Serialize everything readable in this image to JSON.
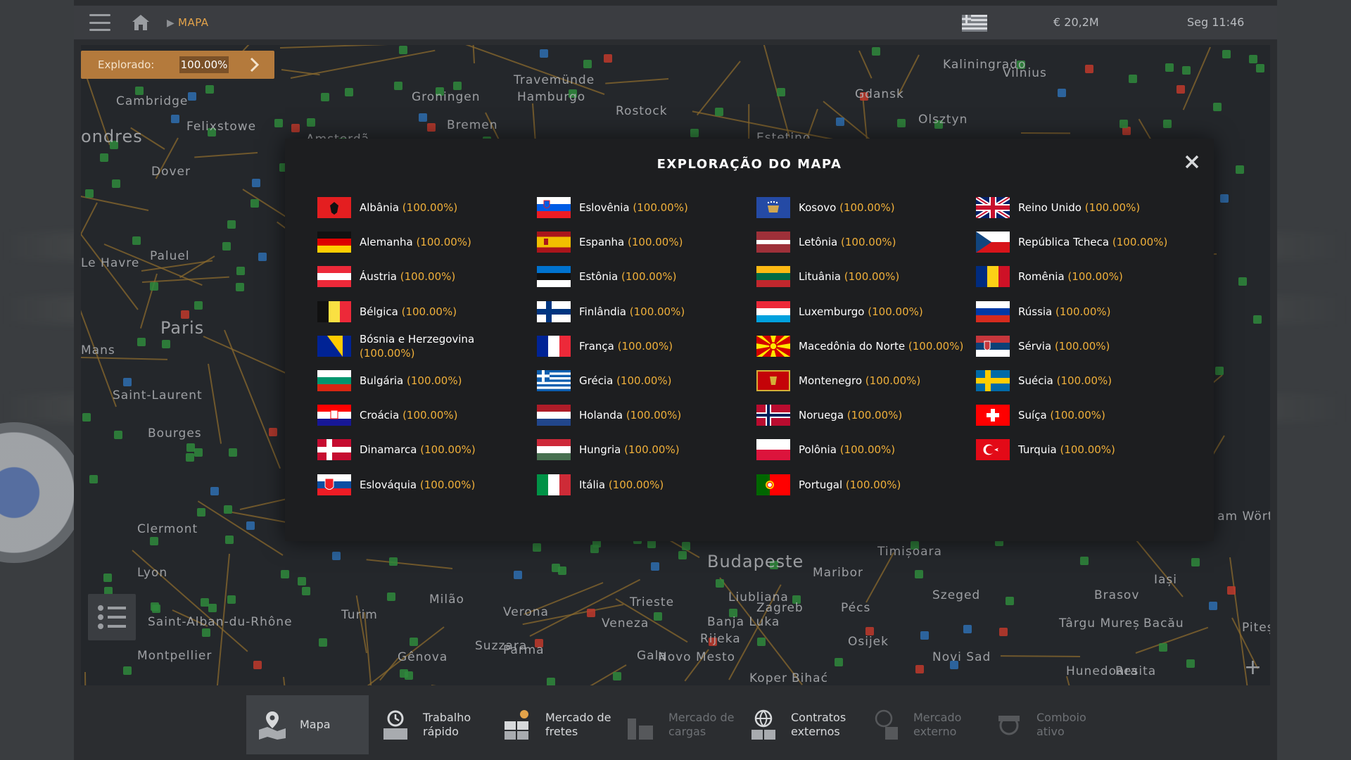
{
  "topbar": {
    "breadcrumb": "MAPA",
    "money": "€ 20,2M",
    "clock": "Seg 11:46",
    "icons": [
      "menu-icon",
      "home-icon",
      "language-flag-icon"
    ]
  },
  "map": {
    "explored_label": "Explorado:",
    "explored_value": "100.00%",
    "cities": [
      "Cambridge",
      "Felixstowe",
      "ondres",
      "Dover",
      "Groningen",
      "Amsterdã",
      "Bremen",
      "Hamburgo",
      "Travemünde",
      "Rostock",
      "Gdansk",
      "Kaliningrado",
      "Vilnius",
      "Olsztyn",
      "Estetino",
      "Le Havre",
      "Paluel",
      "Paris",
      "Mans",
      "Saint-Laurent",
      "Bourges",
      "Clermont",
      "Lyon",
      "Saint-Alban-du-Rhône",
      "Montpellier",
      "Turim",
      "Milão",
      "Gênova",
      "Verona",
      "Veneza",
      "Parma",
      "Trieste",
      "Liubliana",
      "Rijeka",
      "Zagreb",
      "Maribor",
      "Pécs",
      "Osijek",
      "Szeged",
      "Novi Sad",
      "Timișoara",
      "Budapeste",
      "Klagenfurt am Wörthersee",
      "Iași",
      "Bacău",
      "Brasov",
      "Târgu Mureș",
      "Hunedoara",
      "Resita",
      "Pitești",
      "Gala",
      "Koper",
      "Bihać",
      "Banja Luka",
      "Novo Mesto",
      "Suzzara"
    ]
  },
  "modal": {
    "title": "EXPLORAÇÃO DO MAPA",
    "columns": [
      [
        {
          "name": "Albânia",
          "pct": "(100.00%)",
          "flag": "albania"
        },
        {
          "name": "Alemanha",
          "pct": "(100.00%)",
          "flag": "germany"
        },
        {
          "name": "Áustria",
          "pct": "(100.00%)",
          "flag": "austria"
        },
        {
          "name": "Bélgica",
          "pct": "(100.00%)",
          "flag": "belgium"
        },
        {
          "name": "Bósnia e Herzegovina",
          "pct": "(100.00%)",
          "flag": "bosnia"
        },
        {
          "name": "Bulgária",
          "pct": "(100.00%)",
          "flag": "bulgaria"
        },
        {
          "name": "Croácia",
          "pct": "(100.00%)",
          "flag": "croatia"
        },
        {
          "name": "Dinamarca",
          "pct": "(100.00%)",
          "flag": "denmark"
        },
        {
          "name": "Eslováquia",
          "pct": "(100.00%)",
          "flag": "slovakia"
        }
      ],
      [
        {
          "name": "Eslovênia",
          "pct": "(100.00%)",
          "flag": "slovenia"
        },
        {
          "name": "Espanha",
          "pct": "(100.00%)",
          "flag": "spain"
        },
        {
          "name": "Estônia",
          "pct": "(100.00%)",
          "flag": "estonia"
        },
        {
          "name": "Finlândia",
          "pct": "(100.00%)",
          "flag": "finland"
        },
        {
          "name": "França",
          "pct": "(100.00%)",
          "flag": "france"
        },
        {
          "name": "Grécia",
          "pct": "(100.00%)",
          "flag": "greece"
        },
        {
          "name": "Holanda",
          "pct": "(100.00%)",
          "flag": "netherlands"
        },
        {
          "name": "Hungria",
          "pct": "(100.00%)",
          "flag": "hungary"
        },
        {
          "name": "Itália",
          "pct": "(100.00%)",
          "flag": "italy"
        }
      ],
      [
        {
          "name": "Kosovo",
          "pct": "(100.00%)",
          "flag": "kosovo"
        },
        {
          "name": "Letônia",
          "pct": "(100.00%)",
          "flag": "latvia"
        },
        {
          "name": "Lituânia",
          "pct": "(100.00%)",
          "flag": "lithuania"
        },
        {
          "name": "Luxemburgo",
          "pct": "(100.00%)",
          "flag": "luxembourg"
        },
        {
          "name": "Macedônia do Norte",
          "pct": "(100.00%)",
          "flag": "north-macedonia"
        },
        {
          "name": "Montenegro",
          "pct": "(100.00%)",
          "flag": "montenegro"
        },
        {
          "name": "Noruega",
          "pct": "(100.00%)",
          "flag": "norway"
        },
        {
          "name": "Polônia",
          "pct": "(100.00%)",
          "flag": "poland"
        },
        {
          "name": "Portugal",
          "pct": "(100.00%)",
          "flag": "portugal"
        }
      ],
      [
        {
          "name": "Reino Unido",
          "pct": "(100.00%)",
          "flag": "united-kingdom"
        },
        {
          "name": "República Tcheca",
          "pct": "(100.00%)",
          "flag": "czech"
        },
        {
          "name": "Romênia",
          "pct": "(100.00%)",
          "flag": "romania"
        },
        {
          "name": "Rússia",
          "pct": "(100.00%)",
          "flag": "russia"
        },
        {
          "name": "Sérvia",
          "pct": "(100.00%)",
          "flag": "serbia"
        },
        {
          "name": "Suécia",
          "pct": "(100.00%)",
          "flag": "sweden"
        },
        {
          "name": "Suíça",
          "pct": "(100.00%)",
          "flag": "switzerland"
        },
        {
          "name": "Turquia",
          "pct": "(100.00%)",
          "flag": "turkey"
        }
      ]
    ]
  },
  "bottomnav": {
    "items": [
      {
        "label": "Mapa",
        "icon": "map-icon",
        "active": true,
        "enabled": true
      },
      {
        "label": "Trabalho rápido",
        "icon": "quick-job-icon",
        "active": false,
        "enabled": true
      },
      {
        "label": "Mercado de fretes",
        "icon": "freight-market-icon",
        "active": false,
        "enabled": true
      },
      {
        "label": "Mercado de cargas",
        "icon": "cargo-market-icon",
        "active": false,
        "enabled": false
      },
      {
        "label": "Contratos externos",
        "icon": "external-contracts-icon",
        "active": false,
        "enabled": true
      },
      {
        "label": "Mercado externo",
        "icon": "external-market-icon",
        "active": false,
        "enabled": false
      },
      {
        "label": "Comboio ativo",
        "icon": "active-convoy-icon",
        "active": false,
        "enabled": false
      }
    ]
  },
  "colors": {
    "accent": "#f0b03a",
    "breadcrumb": "#e3a34a",
    "explored_bg": "#b47a3c",
    "modal_bg": "#1d1e20"
  }
}
